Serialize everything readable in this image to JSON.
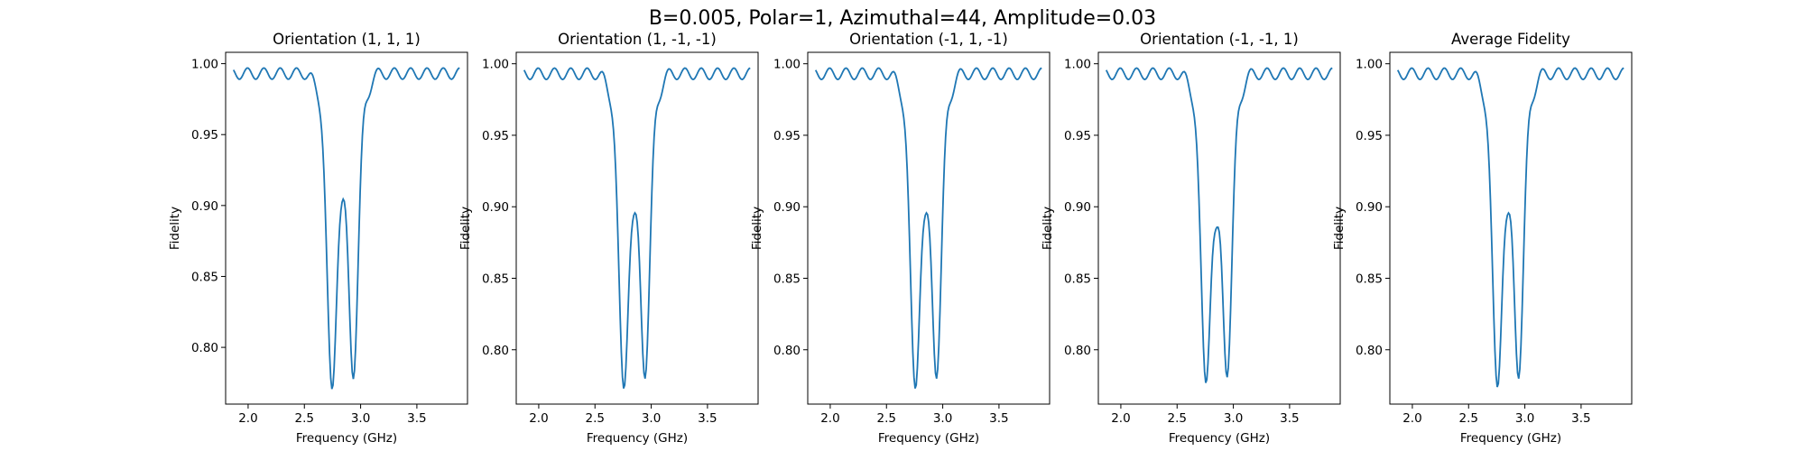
{
  "figure": {
    "suptitle": "B=0.005, Polar=1, Azimuthal=44, Amplitude=0.03"
  },
  "colors": {
    "series": "#1f77b4"
  },
  "chart_data": [
    {
      "type": "line",
      "title": "Orientation (1, 1, 1)",
      "xlabel": "Frequency (GHz)",
      "ylabel": "Fidelity",
      "xlim": [
        1.8,
        3.95
      ],
      "ylim": [
        0.76,
        1.008
      ],
      "xticks": [
        "2.0",
        "2.5",
        "3.0",
        "3.5"
      ],
      "yticks": [
        "0.80",
        "0.85",
        "0.90",
        "0.95",
        "1.00"
      ],
      "dip": {
        "center": 2.84,
        "min_left": 0.769,
        "min_right": 0.782,
        "peak_mid": 0.902
      },
      "grid": false
    },
    {
      "type": "line",
      "title": "Orientation (1, -1, -1)",
      "xlabel": "Frequency (GHz)",
      "ylabel": "Fidelity",
      "xlim": [
        1.8,
        3.95
      ],
      "ylim": [
        0.762,
        1.008
      ],
      "xticks": [
        "2.0",
        "2.5",
        "3.0",
        "3.5"
      ],
      "yticks": [
        "0.80",
        "0.85",
        "0.90",
        "0.95",
        "1.00"
      ],
      "dip": {
        "center": 2.85,
        "min_left": 0.773,
        "min_right": 0.784,
        "peak_mid": 0.892
      },
      "grid": false
    },
    {
      "type": "line",
      "title": "Orientation (-1, 1, -1)",
      "xlabel": "Frequency (GHz)",
      "ylabel": "Fidelity",
      "xlim": [
        1.8,
        3.95
      ],
      "ylim": [
        0.762,
        1.008
      ],
      "xticks": [
        "2.0",
        "2.5",
        "3.0",
        "3.5"
      ],
      "yticks": [
        "0.80",
        "0.85",
        "0.90",
        "0.95",
        "1.00"
      ],
      "dip": {
        "center": 2.85,
        "min_left": 0.773,
        "min_right": 0.784,
        "peak_mid": 0.892
      },
      "grid": false
    },
    {
      "type": "line",
      "title": "Orientation (-1, -1, 1)",
      "xlabel": "Frequency (GHz)",
      "ylabel": "Fidelity",
      "xlim": [
        1.8,
        3.95
      ],
      "ylim": [
        0.762,
        1.008
      ],
      "xticks": [
        "2.0",
        "2.5",
        "3.0",
        "3.5"
      ],
      "yticks": [
        "0.80",
        "0.85",
        "0.90",
        "0.95",
        "1.00"
      ],
      "dip": {
        "center": 2.85,
        "min_left": 0.777,
        "min_right": 0.785,
        "peak_mid": 0.882
      },
      "grid": false
    },
    {
      "type": "line",
      "title": "Average Fidelity",
      "xlabel": "Frequency (GHz)",
      "ylabel": "Fidelity",
      "xlim": [
        1.8,
        3.95
      ],
      "ylim": [
        0.762,
        1.008
      ],
      "xticks": [
        "2.0",
        "2.5",
        "3.0",
        "3.5"
      ],
      "yticks": [
        "0.80",
        "0.85",
        "0.90",
        "0.95",
        "1.00"
      ],
      "dip": {
        "center": 2.85,
        "min_left": 0.774,
        "min_right": 0.784,
        "peak_mid": 0.892
      },
      "grid": false
    }
  ]
}
